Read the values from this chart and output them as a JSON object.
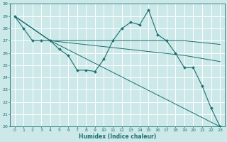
{
  "xlabel": "Humidex (Indice chaleur)",
  "bg_color": "#cce8e8",
  "grid_color": "#ffffff",
  "line_color": "#1a7070",
  "xlim": [
    -0.5,
    23.5
  ],
  "ylim": [
    20,
    30
  ],
  "xticks": [
    0,
    1,
    2,
    3,
    4,
    5,
    6,
    7,
    8,
    9,
    10,
    11,
    12,
    13,
    14,
    15,
    16,
    17,
    18,
    19,
    20,
    21,
    22,
    23
  ],
  "yticks": [
    20,
    21,
    22,
    23,
    24,
    25,
    26,
    27,
    28,
    29,
    30
  ],
  "main_series": {
    "x": [
      0,
      1,
      2,
      3,
      4,
      5,
      6,
      7,
      8,
      9,
      10,
      11,
      12,
      13,
      14,
      15,
      16,
      17,
      18,
      19,
      20,
      21,
      22,
      23
    ],
    "y": [
      29,
      28,
      27,
      27,
      27,
      26.3,
      25.8,
      24.6,
      24.6,
      24.5,
      25.5,
      27,
      28,
      28.5,
      28.3,
      29.5,
      27.5,
      27,
      26,
      24.8,
      24.8,
      23.3,
      21.5,
      20
    ]
  },
  "trend_lines": [
    {
      "x": [
        0,
        4,
        23
      ],
      "y": [
        29,
        27,
        20
      ]
    },
    {
      "x": [
        0,
        4,
        19,
        23
      ],
      "y": [
        29,
        27,
        27,
        26.7
      ]
    },
    {
      "x": [
        0,
        4,
        19,
        23
      ],
      "y": [
        29,
        27,
        25.8,
        25.3
      ]
    }
  ]
}
